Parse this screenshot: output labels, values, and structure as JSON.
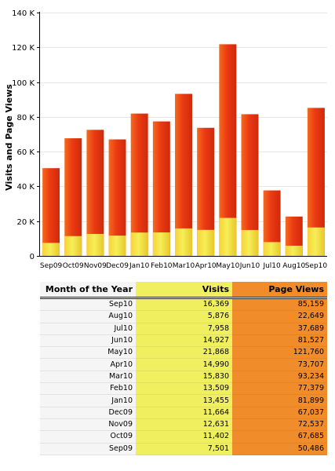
{
  "chart_data": {
    "type": "bar",
    "stacked": true,
    "categories": [
      "Sep09",
      "Oct09",
      "Nov09",
      "Dec09",
      "Jan10",
      "Feb10",
      "Mar10",
      "Apr10",
      "May10",
      "Jun10",
      "Jul10",
      "Aug10",
      "Sep10"
    ],
    "series": [
      {
        "name": "Visits",
        "values": [
          7501,
          11402,
          12631,
          11664,
          13455,
          13509,
          15830,
          14990,
          21868,
          14927,
          7958,
          5876,
          16369
        ],
        "color": "#f3e84a"
      },
      {
        "name": "Page Views",
        "values": [
          50486,
          67685,
          72537,
          67037,
          81899,
          77379,
          93234,
          73707,
          121760,
          81527,
          37689,
          22649,
          85159
        ],
        "color": "#ea3a12"
      }
    ],
    "xlabel": "",
    "ylabel": "Visits and Page Views",
    "ylim": [
      0,
      140000
    ],
    "yticks": [
      0,
      20000,
      40000,
      60000,
      80000,
      100000,
      120000,
      140000
    ],
    "ytick_labels": [
      "0",
      "20 K",
      "40 K",
      "60 K",
      "80 K",
      "100 K",
      "120 K",
      "140 K"
    ],
    "grid": true
  },
  "table": {
    "headers": {
      "month": "Month of the Year",
      "visits": "Visits",
      "page_views": "Page Views"
    },
    "rows": [
      {
        "month": "Sep10",
        "visits": "16,369",
        "page_views": "85,159"
      },
      {
        "month": "Aug10",
        "visits": "5,876",
        "page_views": "22,649"
      },
      {
        "month": "Jul10",
        "visits": "7,958",
        "page_views": "37,689"
      },
      {
        "month": "Jun10",
        "visits": "14,927",
        "page_views": "81,527"
      },
      {
        "month": "May10",
        "visits": "21,868",
        "page_views": "121,760"
      },
      {
        "month": "Apr10",
        "visits": "14,990",
        "page_views": "73,707"
      },
      {
        "month": "Mar10",
        "visits": "15,830",
        "page_views": "93,234"
      },
      {
        "month": "Feb10",
        "visits": "13,509",
        "page_views": "77,379"
      },
      {
        "month": "Jan10",
        "visits": "13,455",
        "page_views": "81,899"
      },
      {
        "month": "Dec09",
        "visits": "11,664",
        "page_views": "67,037"
      },
      {
        "month": "Nov09",
        "visits": "12,631",
        "page_views": "72,537"
      },
      {
        "month": "Oct09",
        "visits": "11,402",
        "page_views": "67,685"
      },
      {
        "month": "Sep09",
        "visits": "7,501",
        "page_views": "50,486"
      }
    ]
  },
  "colors": {
    "visits_table_bg": "#efef5f",
    "page_views_table_bg": "#f08c2a",
    "month_table_bg": "#f5f5f5"
  }
}
